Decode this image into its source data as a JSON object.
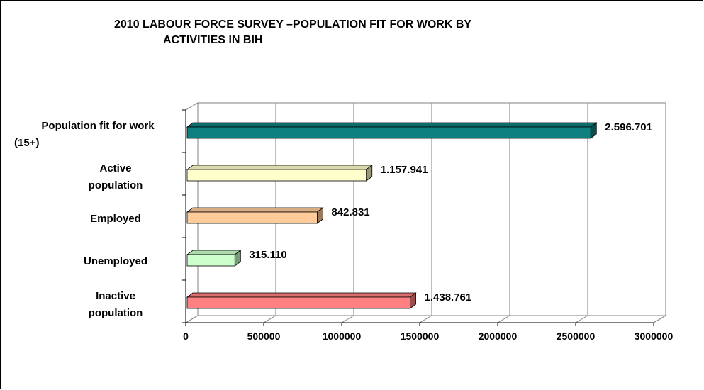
{
  "chart_data": {
    "type": "bar",
    "orientation": "horizontal",
    "title_lines": [
      "2010 LABOUR FORCE SURVEY –POPULATION FIT FOR WORK BY",
      "ACTIVITIES IN BIH"
    ],
    "categories": [
      "Population fit for work (15+)",
      "Active population",
      "Employed",
      "Unemployed",
      "Inactive population"
    ],
    "category_label_lines": [
      [
        "Population fit for work",
        "(15+)"
      ],
      [
        "Active",
        "population"
      ],
      [
        "Employed"
      ],
      [
        "Unemployed"
      ],
      [
        "Inactive",
        "population"
      ]
    ],
    "values": [
      2596701,
      1157941,
      842831,
      315110,
      1438761
    ],
    "data_labels": [
      "2.596.701",
      "1.157.941",
      "842.831",
      "315.110",
      "1.438.761"
    ],
    "bar_colors": [
      "#0f8080",
      "#ffffcc",
      "#ffcc99",
      "#ccffcc",
      "#ff8080"
    ],
    "xlim": [
      0,
      3000000
    ],
    "xticks": [
      0,
      500000,
      1000000,
      1500000,
      2000000,
      2500000,
      3000000
    ],
    "xtick_labels": [
      "0",
      "500000",
      "1000000",
      "1500000",
      "2000000",
      "2500000",
      "3000000"
    ],
    "grid": true,
    "legend": "none"
  }
}
